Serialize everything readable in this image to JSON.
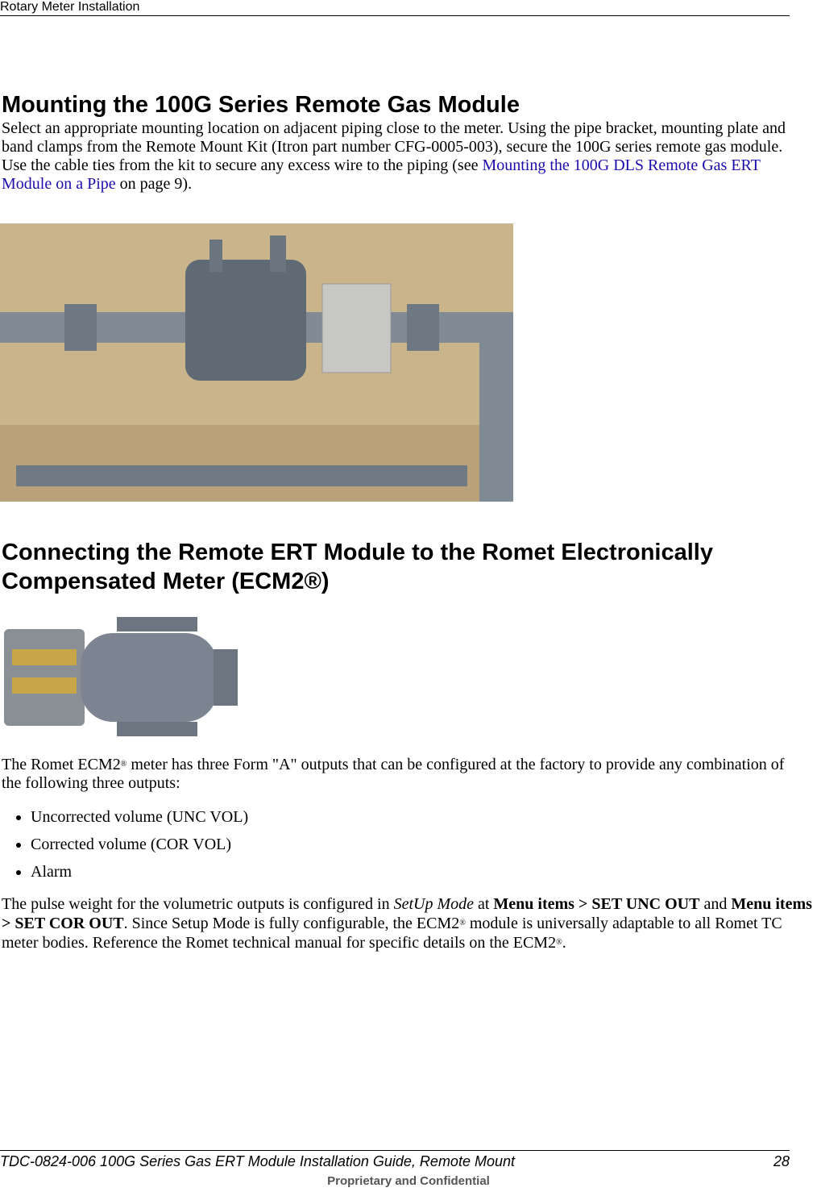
{
  "header": {
    "title": "Rotary Meter Installation"
  },
  "sections": [
    {
      "heading": "Mounting the 100G Series Remote Gas Module",
      "paragraph": {
        "text_before": "Select an appropriate mounting location on adjacent piping close to the meter. Using the pipe bracket, mounting plate and band clamps from the Remote Mount Kit (Itron part number CFG-0005-003), secure the 100G series remote gas module.  Use the cable ties from the kit to secure any excess wire to the piping (see ",
        "link": "Mounting the 100G DLS Remote Gas ERT Module on a Pipe",
        "text_after": " on page 9)."
      }
    },
    {
      "heading": "Connecting the Remote ERT Module to the Romet Electronically Compensated Meter (ECM2®)",
      "intro": {
        "text_before": "The Romet ECM2",
        "mark": "®",
        "text_after": " meter has three Form \"A\" outputs that can be configured at the factory to provide any combination of the following three outputs:"
      },
      "bullets": [
        "Uncorrected volume (UNC VOL)",
        "Corrected volume (COR VOL)",
        "Alarm"
      ],
      "paragraph": {
        "parts": [
          "The pulse weight for the volumetric outputs is configured in ",
          "SetUp Mode",
          " at ",
          "Menu items > SET UNC OUT",
          " and ",
          "Menu items > SET COR OUT",
          ". Since Setup Mode is fully configurable, the ECM2",
          "®",
          " module is universally adaptable to all Romet TC meter bodies. Reference the Romet technical manual for specific details on the ECM2",
          "®",
          "."
        ]
      }
    }
  ],
  "footer": {
    "left": "TDC-0824-006 100G Series Gas ERT Module Installation Guide, Remote Mount",
    "page": "28",
    "confidential": "Proprietary and Confidential"
  }
}
